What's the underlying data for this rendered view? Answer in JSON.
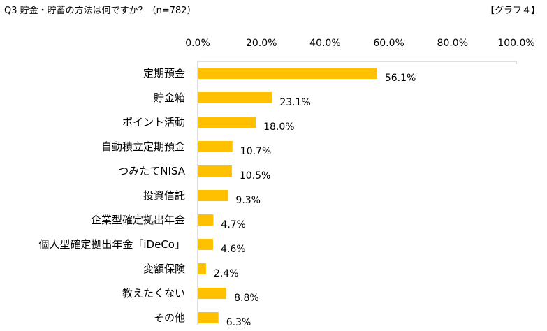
{
  "header": {
    "title": "Q3 貯金・貯蓄の方法は何ですか？（n=782）",
    "figure_tag": "【グラフ４】"
  },
  "chart_data": {
    "type": "bar",
    "orientation": "horizontal",
    "title": "Q3 貯金・貯蓄の方法は何ですか？（n=782）",
    "categories": [
      "定期預金",
      "貯金箱",
      "ポイント活動",
      "自動積立定期預金",
      "つみたてNISA",
      "投資信託",
      "企業型確定拠出年金",
      "個人型確定拠出年金「iDeCo」",
      "変額保険",
      "教えたくない",
      "その他"
    ],
    "values": [
      56.1,
      23.1,
      18.0,
      10.7,
      10.5,
      9.3,
      4.7,
      4.6,
      2.4,
      8.8,
      6.3
    ],
    "value_labels": [
      "56.1%",
      "23.1%",
      "18.0%",
      "10.7%",
      "10.5%",
      "9.3%",
      "4.7%",
      "4.6%",
      "2.4%",
      "8.8%",
      "6.3%"
    ],
    "xlim": [
      0,
      100
    ],
    "ticks": [
      0,
      20,
      40,
      60,
      80,
      100
    ],
    "tick_labels": [
      "0.0%",
      "20.0%",
      "40.0%",
      "60.0%",
      "80.0%",
      "100.0%"
    ],
    "axis_position": "top",
    "grid": false,
    "bar_color": "#FFC000"
  }
}
